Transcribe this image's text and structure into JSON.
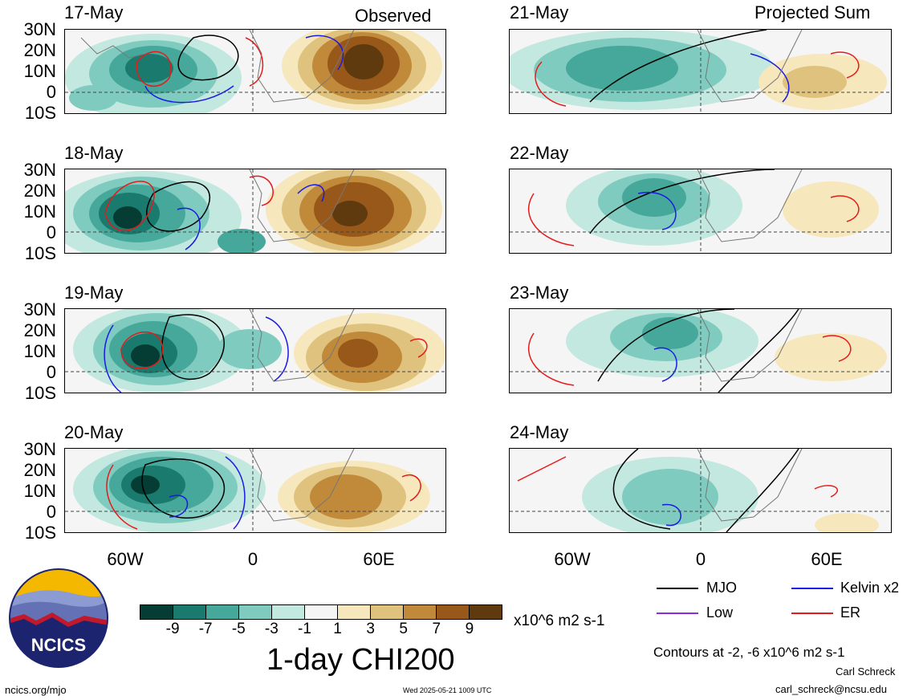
{
  "headers": {
    "observed": "Observed",
    "projected": "Projected Sum"
  },
  "panels_left": [
    {
      "date": "17-May"
    },
    {
      "date": "18-May"
    },
    {
      "date": "19-May"
    },
    {
      "date": "20-May"
    }
  ],
  "panels_right": [
    {
      "date": "21-May"
    },
    {
      "date": "22-May"
    },
    {
      "date": "23-May"
    },
    {
      "date": "24-May"
    }
  ],
  "lat_labels": [
    "30N",
    "20N",
    "10N",
    "0",
    "10S"
  ],
  "lon_labels": [
    "60W",
    "0",
    "60E"
  ],
  "colorbar": {
    "colors": [
      "#053d34",
      "#1a7a6e",
      "#45a89a",
      "#7fcbbf",
      "#c2e8df",
      "#f5f5f5",
      "#f7e7bd",
      "#dfc27d",
      "#c18a3a",
      "#98581a",
      "#5e3a0e"
    ],
    "labels": [
      "-9",
      "-7",
      "-5",
      "-3",
      "-1",
      "1",
      "3",
      "5",
      "7",
      "9"
    ],
    "units": "x10^6 m2 s-1",
    "title": "1-day CHI200"
  },
  "legend": {
    "items": [
      {
        "label": "MJO",
        "color": "#000000"
      },
      {
        "label": "Kelvin x2",
        "color": "#1a1ae6"
      },
      {
        "label": "Low",
        "color": "#8a2be2"
      },
      {
        "label": "ER",
        "color": "#e61a1a"
      }
    ],
    "contours_note": "Contours at -2, -6 x10^6 m2 s-1"
  },
  "logo_text": "NCICS",
  "footer": {
    "url": "ncics.org/mjo",
    "timestamp": "Wed 2025-05-21 1009 UTC",
    "author": "Carl Schreck",
    "email": "carl_schreck@ncsu.edu"
  }
}
